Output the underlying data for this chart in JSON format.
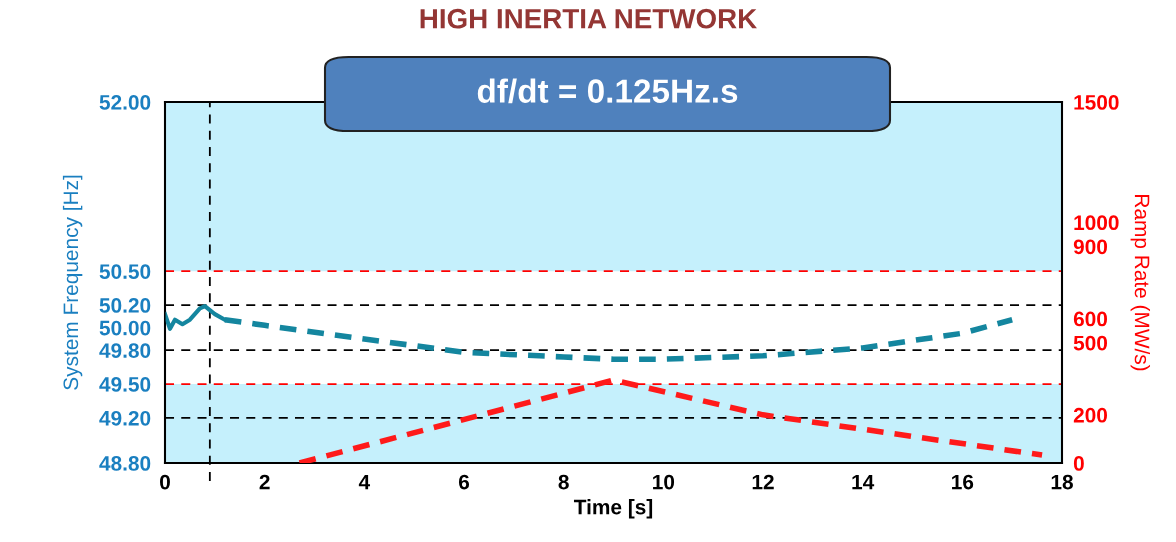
{
  "chart_data": {
    "type": "line",
    "title": "HIGH INERTIA NETWORK",
    "xlabel": "Time [s]",
    "ylabel": "System Frequency [Hz]",
    "y2label": "Ramp Rate (MW/s)",
    "annotations": [
      "df/dt = 0.125Hz.s"
    ],
    "series": [
      {
        "color": "#14869f",
        "line_style": "solid",
        "x": [
          0,
          0.1,
          0.2,
          0.35,
          0.5,
          0.7,
          0.8,
          1.0,
          1.2
        ],
        "values": [
          50.12,
          49.99,
          50.07,
          50.03,
          50.07,
          50.17,
          50.19,
          50.12,
          50.07
        ]
      },
      {
        "color": "#14869f",
        "line_style": "dashed",
        "x": [
          1.2,
          2,
          4,
          6,
          8,
          9,
          10,
          12,
          14,
          16,
          17
        ],
        "values": [
          50.07,
          50.02,
          49.9,
          49.78,
          49.74,
          49.72,
          49.72,
          49.75,
          49.82,
          49.95,
          50.07
        ]
      },
      {
        "color": "#ff1a1a",
        "line_style": "dashed",
        "axis": "y2",
        "x": [
          2.7,
          9,
          12,
          17.6
        ],
        "values": [
          0,
          345,
          200,
          33
        ]
      }
    ],
    "xlim": [
      0,
      18
    ],
    "xticks": [
      0,
      2,
      4,
      6,
      8,
      10,
      12,
      14,
      16,
      18
    ],
    "ylim": [
      48.8,
      52.0
    ],
    "yticks": [
      {
        "value": 48.8,
        "label": "48.80"
      },
      {
        "value": 49.2,
        "label": "49.20"
      },
      {
        "value": 49.5,
        "label": "49.50"
      },
      {
        "value": 49.8,
        "label": "49.80"
      },
      {
        "value": 50.0,
        "label": "50.00"
      },
      {
        "value": 50.2,
        "label": "50.20"
      },
      {
        "value": 50.5,
        "label": "50.50"
      },
      {
        "value": 52.0,
        "label": "52.00"
      }
    ],
    "y2lim": [
      0,
      1500
    ],
    "y2ticks": [
      0,
      200,
      500,
      600,
      900,
      1000,
      1500
    ],
    "ref_lines": [
      {
        "axis": "y",
        "value": 50.5,
        "color": "#ff0000",
        "line_style": "dashed"
      },
      {
        "axis": "y",
        "value": 49.5,
        "color": "#ff0000",
        "line_style": "dashed"
      },
      {
        "axis": "y",
        "value": 50.2,
        "color": "#000000",
        "line_style": "dashed"
      },
      {
        "axis": "y",
        "value": 49.8,
        "color": "#000000",
        "line_style": "dashed"
      },
      {
        "axis": "y",
        "value": 49.2,
        "color": "#000000",
        "line_style": "dashed"
      },
      {
        "axis": "x",
        "value": 0.9,
        "color": "#000000",
        "line_style": "dashed"
      }
    ],
    "bands": [
      {
        "axis": "y",
        "from": 49.5,
        "to": 50.5,
        "color": "#ffffff"
      }
    ],
    "grid": false,
    "legend": false
  }
}
